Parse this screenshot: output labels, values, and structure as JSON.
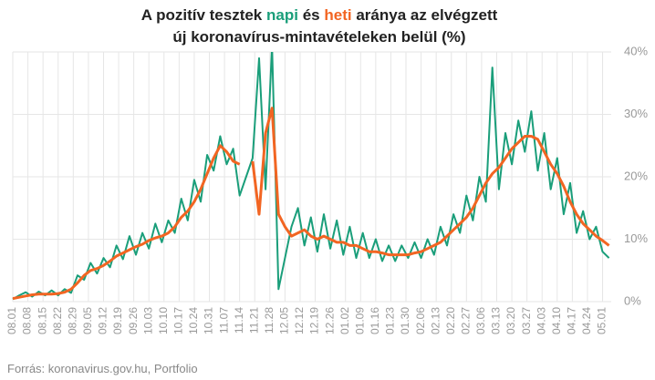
{
  "chart_data": {
    "type": "line",
    "title": [
      [
        "A pozitív tesztek",
        "napi",
        "és",
        "heti",
        "aránya az elvégzett"
      ],
      [
        "új koronavírus-mintavételeken belül (%)"
      ]
    ],
    "source": "Forrás: koronavirus.gov.hu, Portfolio",
    "x": [
      0,
      3,
      6,
      9,
      12,
      15,
      18,
      21,
      24,
      27,
      30,
      33,
      36,
      39,
      42,
      45,
      48,
      51,
      54,
      57,
      60,
      63,
      66,
      69,
      72,
      75,
      78,
      81,
      84,
      87,
      90,
      93,
      96,
      99,
      102,
      105,
      108,
      111,
      114,
      117,
      120,
      123,
      126,
      129,
      132,
      135,
      138,
      141,
      144,
      147,
      150,
      153,
      156,
      159,
      162,
      165,
      168,
      171,
      174,
      177,
      180,
      183,
      186,
      189,
      192,
      195,
      198,
      201,
      204,
      207,
      210,
      213,
      216,
      219,
      222,
      225,
      228,
      231,
      234,
      237,
      240,
      243,
      246,
      249,
      252,
      255,
      258,
      261,
      264,
      267,
      270,
      273,
      276
    ],
    "xlim": [
      0,
      277
    ],
    "xticks": [
      {
        "value": 0,
        "label": "08.01"
      },
      {
        "value": 7,
        "label": "08.08"
      },
      {
        "value": 14,
        "label": "08.15"
      },
      {
        "value": 21,
        "label": "08.22"
      },
      {
        "value": 28,
        "label": "08.29"
      },
      {
        "value": 35,
        "label": "09.05"
      },
      {
        "value": 42,
        "label": "09.12"
      },
      {
        "value": 49,
        "label": "09.19"
      },
      {
        "value": 56,
        "label": "09.26"
      },
      {
        "value": 63,
        "label": "10.03"
      },
      {
        "value": 70,
        "label": "10.10"
      },
      {
        "value": 77,
        "label": "10.17"
      },
      {
        "value": 84,
        "label": "10.24"
      },
      {
        "value": 91,
        "label": "10.31"
      },
      {
        "value": 98,
        "label": "11.07"
      },
      {
        "value": 105,
        "label": "11.14"
      },
      {
        "value": 112,
        "label": "11.21"
      },
      {
        "value": 119,
        "label": "11.28"
      },
      {
        "value": 126,
        "label": "12.05"
      },
      {
        "value": 133,
        "label": "12.12"
      },
      {
        "value": 140,
        "label": "12.19"
      },
      {
        "value": 147,
        "label": "12.26"
      },
      {
        "value": 154,
        "label": "01.02"
      },
      {
        "value": 161,
        "label": "01.09"
      },
      {
        "value": 168,
        "label": "01.16"
      },
      {
        "value": 175,
        "label": "01.23"
      },
      {
        "value": 182,
        "label": "01.30"
      },
      {
        "value": 189,
        "label": "02.06"
      },
      {
        "value": 196,
        "label": "02.13"
      },
      {
        "value": 203,
        "label": "02.20"
      },
      {
        "value": 210,
        "label": "02.27"
      },
      {
        "value": 217,
        "label": "03.06"
      },
      {
        "value": 224,
        "label": "03.13"
      },
      {
        "value": 231,
        "label": "03.20"
      },
      {
        "value": 238,
        "label": "03.27"
      },
      {
        "value": 245,
        "label": "04.03"
      },
      {
        "value": 252,
        "label": "04.10"
      },
      {
        "value": 259,
        "label": "04.17"
      },
      {
        "value": 266,
        "label": "04.24"
      },
      {
        "value": 273,
        "label": "05.01"
      }
    ],
    "ylim": [
      0,
      40
    ],
    "yticks": [
      {
        "value": 0,
        "label": "0%"
      },
      {
        "value": 10,
        "label": "10%"
      },
      {
        "value": 20,
        "label": "20%"
      },
      {
        "value": 30,
        "label": "30%"
      },
      {
        "value": 40,
        "label": "40%"
      }
    ],
    "grid": true,
    "series": [
      {
        "color": "#1a9e7a",
        "width": 2,
        "values": [
          0.4,
          1.0,
          1.5,
          0.8,
          1.6,
          1.0,
          1.8,
          1.0,
          2.0,
          1.4,
          4.2,
          3.5,
          6.2,
          4.5,
          7.0,
          5.5,
          9.0,
          6.8,
          10.5,
          7.5,
          11.0,
          8.5,
          12.5,
          9.5,
          13.0,
          11.0,
          16.5,
          13.0,
          19.5,
          16.0,
          23.5,
          21.0,
          26.5,
          22.0,
          24.5,
          17.0,
          20.0,
          23.0,
          39.0,
          18.0,
          41.0,
          2.0,
          7.0,
          12.0,
          15.0,
          9.0,
          13.5,
          8.0,
          14.0,
          8.5,
          13.0,
          7.5,
          12.0,
          7.0,
          11.0,
          7.0,
          10.0,
          6.5,
          9.0,
          6.5,
          9.0,
          7.0,
          9.5,
          7.0,
          10.0,
          7.5,
          12.0,
          9.0,
          14.0,
          11.0,
          17.0,
          13.0,
          20.0,
          16.0,
          37.5,
          18.0,
          27.0,
          22.0,
          29.0,
          24.0,
          30.5,
          21.0,
          27.0,
          18.0,
          23.0,
          14.0,
          19.0,
          11.0,
          14.5,
          10.0,
          12.0,
          8.0,
          7.0
        ]
      },
      {
        "color": "#f26522",
        "width": 3,
        "values": [
          0.5,
          0.7,
          0.9,
          1.1,
          1.2,
          1.2,
          1.2,
          1.3,
          1.5,
          2.0,
          3.0,
          4.2,
          5.0,
          5.3,
          5.8,
          6.5,
          7.3,
          7.8,
          8.3,
          8.8,
          9.2,
          9.8,
          10.2,
          10.5,
          11.0,
          12.0,
          13.5,
          14.5,
          16.0,
          18.0,
          20.5,
          23.0,
          25.0,
          24.0,
          22.5,
          22.0,
          null,
          22.5,
          14.0,
          27.0,
          31.0,
          14.0,
          12.0,
          10.5,
          11.0,
          11.5,
          10.5,
          10.0,
          10.5,
          10.0,
          9.5,
          9.5,
          9.0,
          9.0,
          8.5,
          8.0,
          8.0,
          7.8,
          7.5,
          7.5,
          7.5,
          7.5,
          7.8,
          8.0,
          8.5,
          9.0,
          9.5,
          10.5,
          11.5,
          12.5,
          13.5,
          15.0,
          17.0,
          19.0,
          20.5,
          21.5,
          23.0,
          24.5,
          25.5,
          26.5,
          26.5,
          26.0,
          24.0,
          22.0,
          20.5,
          18.5,
          16.0,
          14.0,
          12.5,
          11.5,
          10.5,
          9.8,
          9.0
        ]
      }
    ]
  }
}
